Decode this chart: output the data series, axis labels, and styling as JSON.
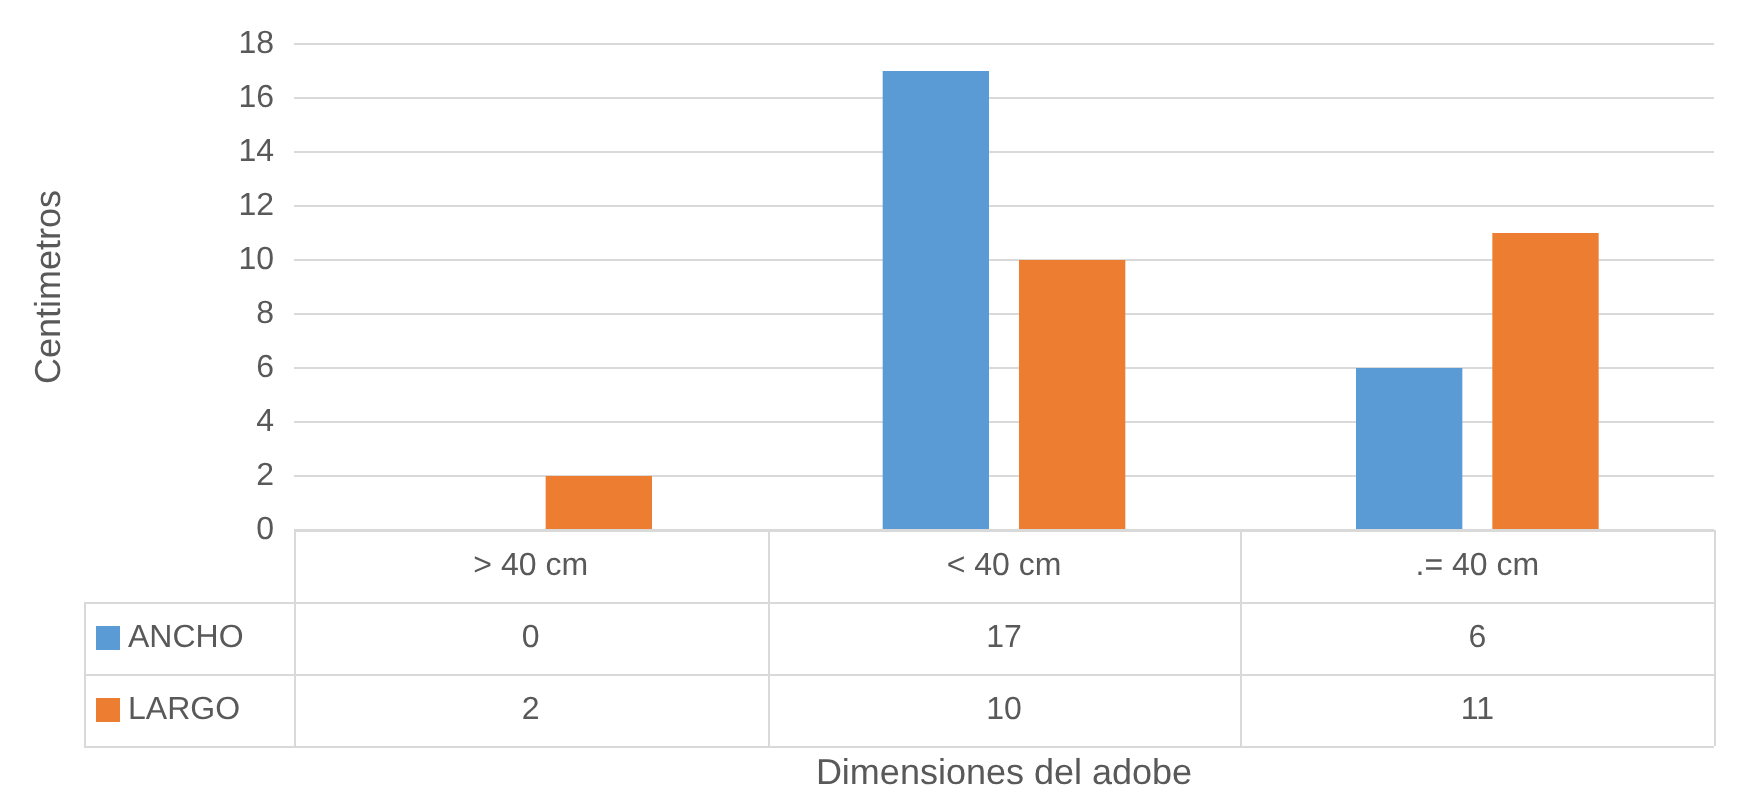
{
  "chart_data": {
    "type": "bar",
    "xlabel": "Dimensiones del adobe",
    "ylabel": "Centimetros",
    "categories": [
      "> 40 cm",
      "< 40 cm",
      ".= 40 cm"
    ],
    "series": [
      {
        "name": "ANCHO",
        "color": "#5b9bd5",
        "values": [
          0,
          17,
          6
        ]
      },
      {
        "name": "LARGO",
        "color": "#ed7d31",
        "values": [
          2,
          10,
          11
        ]
      }
    ],
    "ylim": [
      0,
      18
    ],
    "yticks": [
      0,
      2,
      4,
      6,
      8,
      10,
      12,
      14,
      16,
      18
    ],
    "grid": "y",
    "legend": "bottom",
    "data_labels": true
  }
}
